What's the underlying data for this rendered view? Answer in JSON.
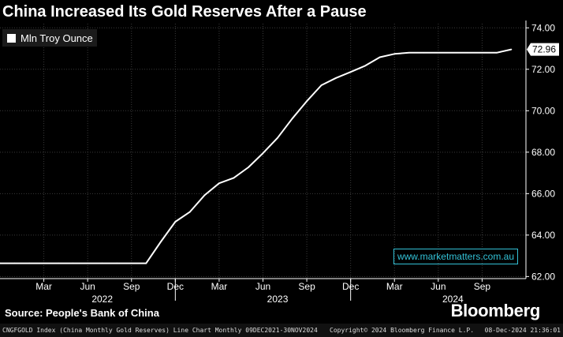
{
  "title": "China Increased Its Gold Reserves After a Pause",
  "legend": {
    "label": "Mln Troy Ounce"
  },
  "watermark": "www.marketmatters.com.au",
  "source": "Source: People's Bank of China",
  "brand": "Bloomberg",
  "footer": {
    "left": "CNGFGOLD Index (China Monthly Gold Reserves) Line Chart  Monthly 09DEC2021-30NOV2024",
    "center": "Copyright© 2024 Bloomberg Finance L.P.",
    "right": "08-Dec-2024 21:36:01"
  },
  "colors": {
    "background": "#000000",
    "line": "#ffffff",
    "watermark": "#33c1d6"
  },
  "chart_data": {
    "type": "line",
    "title": "China Increased Its Gold Reserves After a Pause",
    "ylabel": "",
    "xlabel": "",
    "ylim": [
      61.9,
      74.2
    ],
    "yticks": [
      62.0,
      64.0,
      66.0,
      68.0,
      70.0,
      72.0,
      74.0
    ],
    "ytick_labels": [
      "62.00",
      "64.00",
      "66.00",
      "68.00",
      "70.00",
      "72.00",
      "74.00"
    ],
    "xlim": [
      "2021-12",
      "2024-12"
    ],
    "month_ticks": [
      "2022-03",
      "2022-06",
      "2022-09",
      "2022-12",
      "2023-03",
      "2023-06",
      "2023-09",
      "2023-12",
      "2024-03",
      "2024-06",
      "2024-09"
    ],
    "month_tick_labels": [
      "Mar",
      "Jun",
      "Sep",
      "Dec",
      "Mar",
      "Jun",
      "Sep",
      "Dec",
      "Mar",
      "Jun",
      "Sep"
    ],
    "year_labels": [
      {
        "label": "2022",
        "center": "2022-07"
      },
      {
        "label": "2023",
        "center": "2023-07"
      },
      {
        "label": "2024",
        "center": "2024-07"
      }
    ],
    "year_separators": [
      "2022-12",
      "2023-12"
    ],
    "last_value_label": "72.96",
    "grid": true,
    "legend_position": "top-left",
    "series": [
      {
        "name": "Mln Troy Ounce",
        "x": [
          "2021-12",
          "2022-01",
          "2022-02",
          "2022-03",
          "2022-04",
          "2022-05",
          "2022-06",
          "2022-07",
          "2022-08",
          "2022-09",
          "2022-10",
          "2022-11",
          "2022-12",
          "2023-01",
          "2023-02",
          "2023-03",
          "2023-04",
          "2023-05",
          "2023-06",
          "2023-07",
          "2023-08",
          "2023-09",
          "2023-10",
          "2023-11",
          "2023-12",
          "2024-01",
          "2024-02",
          "2024-03",
          "2024-04",
          "2024-05",
          "2024-06",
          "2024-07",
          "2024-08",
          "2024-09",
          "2024-10",
          "2024-11"
        ],
        "values": [
          62.64,
          62.64,
          62.64,
          62.64,
          62.64,
          62.64,
          62.64,
          62.64,
          62.64,
          62.64,
          62.64,
          63.67,
          64.64,
          65.12,
          65.92,
          66.5,
          66.76,
          67.27,
          67.95,
          68.69,
          69.62,
          70.46,
          71.23,
          71.58,
          71.87,
          72.17,
          72.58,
          72.74,
          72.8,
          72.8,
          72.8,
          72.8,
          72.8,
          72.8,
          72.8,
          72.96
        ]
      }
    ]
  }
}
